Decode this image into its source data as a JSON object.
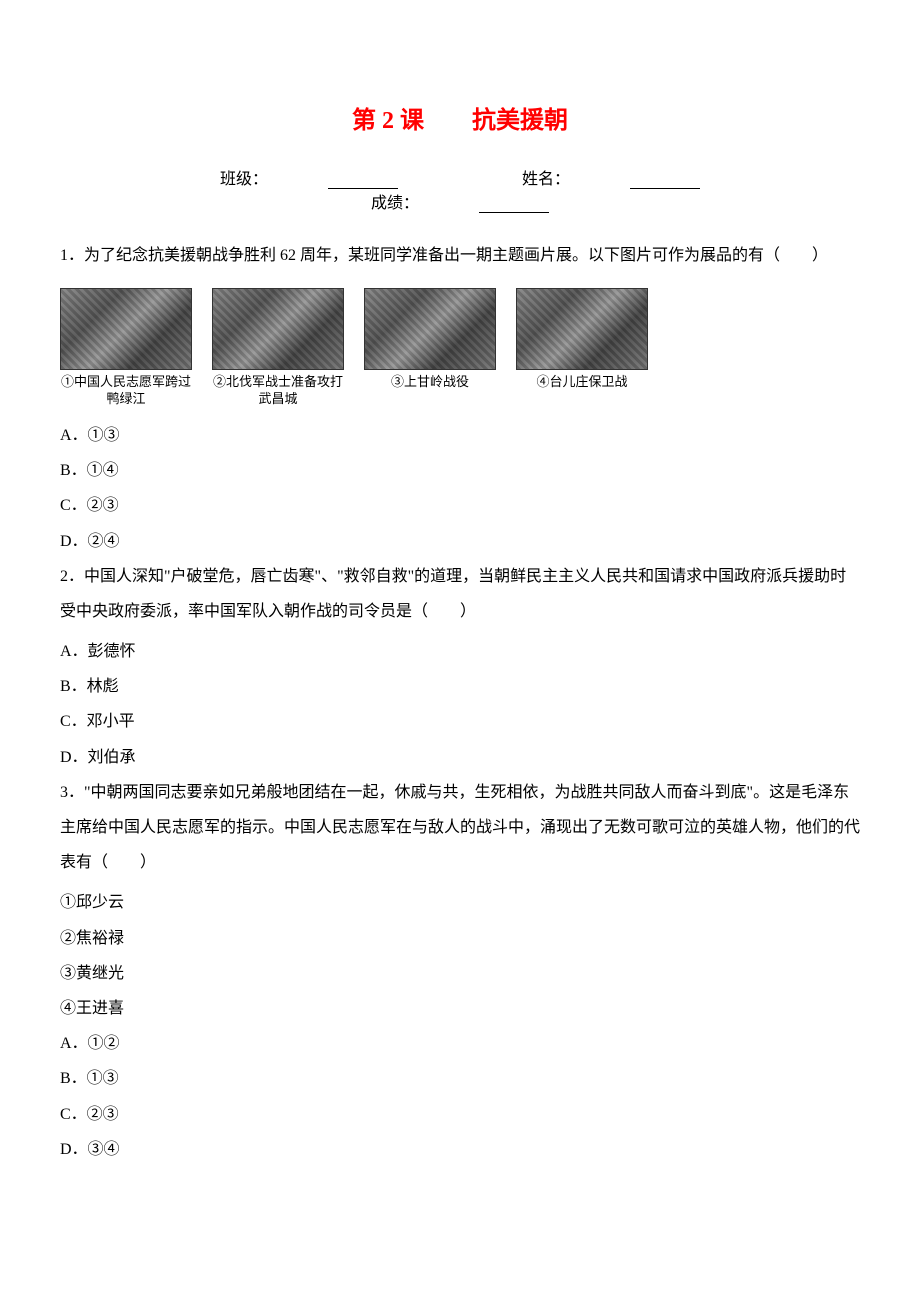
{
  "title": "第 2 课　　抗美援朝",
  "header": {
    "class_label": "班级：",
    "name_label": "姓名：",
    "score_label": "成绩："
  },
  "figures": [
    {
      "caption": "①中国人民志愿军跨过鸭绿江"
    },
    {
      "caption": "②北伐军战士准备攻打武昌城"
    },
    {
      "caption": "③上甘岭战役"
    },
    {
      "caption": "④台儿庄保卫战"
    }
  ],
  "q1": {
    "stem": "1．为了纪念抗美援朝战争胜利 62 周年，某班同学准备出一期主题画片展。以下图片可作为展品的有（　　）",
    "options": {
      "A": "A．①③",
      "B": "B．①④",
      "C": "C．②③",
      "D": "D．②④"
    }
  },
  "q2": {
    "stem": "2．中国人深知\"户破堂危，唇亡齿寒\"、\"救邻自救\"的道理，当朝鲜民主主义人民共和国请求中国政府派兵援助时受中央政府委派，率中国军队入朝作战的司令员是（　　）",
    "options": {
      "A": "A．彭德怀",
      "B": "B．林彪",
      "C": "C．邓小平",
      "D": "D．刘伯承"
    }
  },
  "q3": {
    "stem": "3．\"中朝两国同志要亲如兄弟般地团结在一起，休戚与共，生死相依，为战胜共同敌人而奋斗到底\"。这是毛泽东主席给中国人民志愿军的指示。中国人民志愿军在与敌人的战斗中，涌现出了无数可歌可泣的英雄人物，他们的代表有（　　）",
    "items": {
      "i1": "①邱少云",
      "i2": "②焦裕禄",
      "i3": "③黄继光",
      "i4": "④王进喜"
    },
    "options": {
      "A": "A．①②",
      "B": "B．①③",
      "C": "C．②③",
      "D": "D．③④"
    }
  }
}
